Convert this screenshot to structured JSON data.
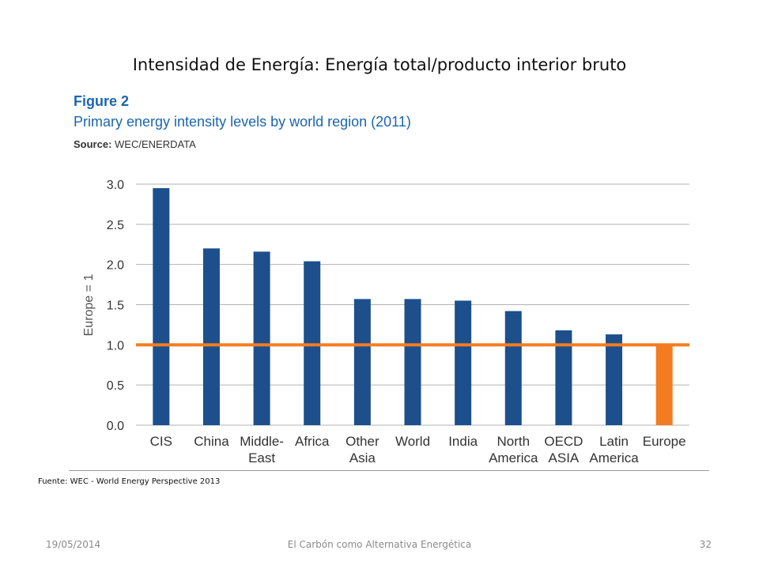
{
  "slide": {
    "title": "Intensidad de Energía: Energía total/producto interior bruto",
    "source_note": "Fuente: WEC - World Energy Perspective 2013",
    "footer": {
      "date": "19/05/2014",
      "title": "El Carbón como Alternativa Energética",
      "page": "32"
    }
  },
  "figure": {
    "label": "Figure 2",
    "title": "Primary energy intensity levels by world region (2011)",
    "source_label": "Source:",
    "source_value": "WEC/ENERDATA"
  },
  "colors": {
    "bar": "#1c4f8c",
    "highlight": "#f47c20",
    "figure_text": "#1b66b0",
    "grid": "#b3b3b3"
  },
  "chart_data": {
    "type": "bar",
    "categories": [
      "CIS",
      "China",
      "Middle-East",
      "Africa",
      "Other Asia",
      "World",
      "India",
      "North America",
      "OECD ASIA",
      "Latin America",
      "Europe"
    ],
    "category_label_lines": [
      [
        "CIS"
      ],
      [
        "China"
      ],
      [
        "Middle-",
        "East"
      ],
      [
        "Africa"
      ],
      [
        "Other",
        "Asia"
      ],
      [
        "World"
      ],
      [
        "India"
      ],
      [
        "North",
        "America"
      ],
      [
        "OECD",
        "ASIA"
      ],
      [
        "Latin",
        "America"
      ],
      [
        "Europe"
      ]
    ],
    "values": [
      2.95,
      2.2,
      2.16,
      2.04,
      1.57,
      1.57,
      1.55,
      1.42,
      1.18,
      1.13,
      1.0
    ],
    "highlight_category": "Europe",
    "reference_line": 1.0,
    "ylabel": "Europe = 1",
    "xlabel": "",
    "ylim": [
      0,
      3.0
    ],
    "yticks": [
      0.0,
      0.5,
      1.0,
      1.5,
      2.0,
      2.5,
      3.0
    ],
    "ytick_labels": [
      "0.0",
      "0.5",
      "1.0",
      "1.5",
      "2.0",
      "2.5",
      "3.0"
    ],
    "grid": true,
    "legend": "none"
  }
}
